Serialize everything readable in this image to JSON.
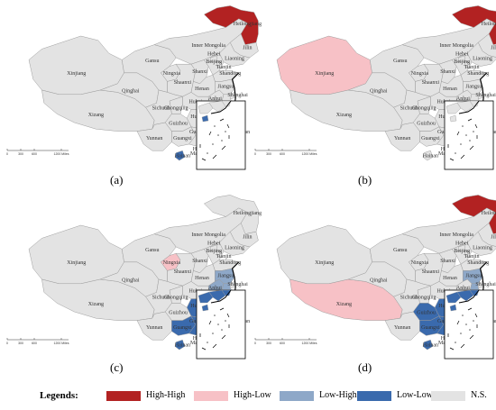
{
  "colors": {
    "High-High": "#b22222",
    "High-Low": "#f7c1c6",
    "Low-High": "#8ea8c8",
    "Low-Low": "#3a6aad",
    "N.S.": "#e3e3e3",
    "border": "#9a9a9a",
    "coast": "#000000"
  },
  "province_labels": [
    "Heilongjiang",
    "Jilin",
    "Liaoning",
    "Inner Mongolia",
    "Beijing",
    "Hebei",
    "Tianjin",
    "Xinjiang",
    "Gansu",
    "Ningxia",
    "Shanxi",
    "Shandong",
    "Qinghai",
    "Shaanxi",
    "Henan",
    "Jiangsu",
    "Xizang",
    "Sichuan",
    "Hubei",
    "Anhui",
    "Shanghai",
    "Chongqing",
    "Zhejiang",
    "Hunan",
    "Jiangxi",
    "Guizhou",
    "Fujian",
    "Yunnan",
    "Guangxi",
    "Guangdong",
    "Taiwan",
    "Hainan",
    "Hongkong",
    "Macao"
  ],
  "scale_bar": [
    "0",
    "300",
    "600",
    "1200 Miles"
  ],
  "panels": [
    {
      "label": "(a)",
      "classes": {
        "Heilongjiang": "High-High",
        "Hainan": "Low-Low",
        "Guangdong": "N.S."
      }
    },
    {
      "label": "(b)",
      "classes": {
        "Heilongjiang": "High-High",
        "Xinjiang": "High-Low"
      }
    },
    {
      "label": "(c)",
      "classes": {
        "Ningxia": "High-Low",
        "Jiangsu": "Low-High",
        "Zhejiang": "Low-High",
        "Anhui": "Low-High",
        "Guangxi": "Low-Low",
        "Guangdong": "Low-Low",
        "Hunan": "Low-Low",
        "Jiangxi": "Low-Low",
        "Fujian": "Low-Low",
        "Hainan": "Low-Low"
      }
    },
    {
      "label": "(d)",
      "classes": {
        "Heilongjiang": "High-High",
        "Xizang": "High-Low",
        "Jiangsu": "Low-High",
        "Zhejiang": "Low-High",
        "Guangxi": "Low-Low",
        "Guangdong": "Low-Low",
        "Hunan": "Low-Low",
        "Jiangxi": "Low-Low",
        "Fujian": "Low-Low",
        "Guizhou": "Low-Low",
        "Hainan": "Low-Low"
      }
    }
  ],
  "legend": {
    "title": "Legends:",
    "items": [
      {
        "label": "High-High",
        "key": "High-High"
      },
      {
        "label": "High-Low",
        "key": "High-Low"
      },
      {
        "label": "Low-High",
        "key": "Low-High"
      },
      {
        "label": "Low-Low",
        "key": "Low-Low"
      },
      {
        "label": "N.S.",
        "key": "N.S."
      }
    ]
  }
}
